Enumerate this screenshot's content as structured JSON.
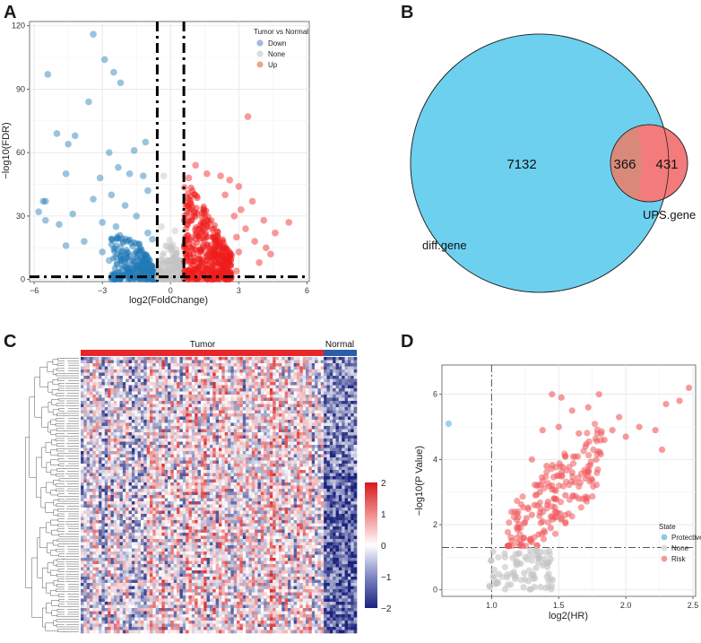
{
  "panels": {
    "a": {
      "letter": "A"
    },
    "b": {
      "letter": "B"
    },
    "c": {
      "letter": "C"
    },
    "d": {
      "letter": "D"
    }
  },
  "chart_data": [
    {
      "id": "volcano",
      "type": "scatter",
      "title": "",
      "xlabel": "log2(FoldChange)",
      "ylabel": "−log10(FDR)",
      "xlim": [
        -6.2,
        6.1
      ],
      "ylim": [
        -1,
        122
      ],
      "xticks": [
        -6,
        -3,
        0,
        3,
        6
      ],
      "xtick_labels": [
        "−6",
        "−3",
        "0",
        "3",
        "6"
      ],
      "yticks": [
        0,
        30,
        60,
        90,
        120
      ],
      "ytick_labels": [
        "0",
        "30",
        "60",
        "90",
        "120"
      ],
      "thresholds": {
        "x": [
          -0.585,
          0.585
        ],
        "y": 1.3
      },
      "legend": {
        "title": "Tumor vs Normal",
        "entries": [
          "Down",
          "None",
          "Up"
        ],
        "position": "top-right"
      },
      "colors": {
        "Down": "#1f7ab5",
        "None": "#c4c4c4",
        "Up": "#f01c1c"
      },
      "series": [
        {
          "name": "Down",
          "points": [
            [
              -3.4,
              116
            ],
            [
              -2.9,
              104
            ],
            [
              -5.4,
              97
            ],
            [
              -2.5,
              98
            ],
            [
              -2.2,
              93
            ],
            [
              -3.6,
              84
            ],
            [
              -5.0,
              69
            ],
            [
              -4.5,
              64
            ],
            [
              -4.2,
              68
            ],
            [
              -1.1,
              65
            ],
            [
              -2.7,
              60
            ],
            [
              -1.6,
              61
            ],
            [
              -4.6,
              50
            ],
            [
              -5.6,
              37
            ],
            [
              -5.5,
              37
            ],
            [
              -5.8,
              32
            ],
            [
              -5.5,
              28
            ],
            [
              -4.9,
              26
            ],
            [
              -4.3,
              31
            ],
            [
              -4.6,
              16
            ],
            [
              -3.8,
              18
            ],
            [
              -3.1,
              48
            ],
            [
              -2.3,
              53
            ],
            [
              -1.8,
              50
            ],
            [
              -1.2,
              49
            ],
            [
              -1.0,
              42
            ],
            [
              -2.6,
              40
            ],
            [
              -3.4,
              38
            ],
            [
              -2.0,
              35
            ],
            [
              -1.5,
              30
            ],
            [
              -3.0,
              27
            ],
            [
              -2.4,
              25
            ],
            [
              -1.0,
              22
            ],
            [
              -0.8,
              19
            ],
            [
              -1.5,
              17
            ],
            [
              -2.2,
              15
            ],
            [
              -3.0,
              13
            ],
            [
              -2.7,
              9
            ],
            [
              -1.8,
              11
            ],
            [
              -1.1,
              8
            ],
            [
              -0.8,
              5
            ],
            [
              -2.0,
              6
            ],
            [
              -1.4,
              4
            ],
            [
              -0.9,
              2.5
            ]
          ]
        },
        {
          "name": "None",
          "points": [
            [
              -0.3,
              49
            ],
            [
              -0.4,
              25
            ],
            [
              0.2,
              23
            ],
            [
              -0.2,
              16
            ],
            [
              0.1,
              12
            ],
            [
              -0.3,
              8
            ],
            [
              0.3,
              6
            ],
            [
              0,
              4
            ],
            [
              -0.1,
              2
            ],
            [
              0.2,
              1
            ],
            [
              -0.4,
              0.6
            ],
            [
              0.4,
              0.4
            ]
          ]
        },
        {
          "name": "Up",
          "points": [
            [
              3.4,
              77
            ],
            [
              1.1,
              54
            ],
            [
              0.8,
              48
            ],
            [
              2.2,
              49
            ],
            [
              2.6,
              47
            ],
            [
              1.6,
              50
            ],
            [
              3.0,
              44
            ],
            [
              2.4,
              40
            ],
            [
              3.6,
              37
            ],
            [
              3.1,
              33
            ],
            [
              2.8,
              30
            ],
            [
              4.1,
              28
            ],
            [
              5.2,
              27
            ],
            [
              3.3,
              24
            ],
            [
              4.6,
              22
            ],
            [
              2.9,
              20
            ],
            [
              3.7,
              18
            ],
            [
              4.2,
              15
            ],
            [
              3.0,
              13
            ],
            [
              2.3,
              11
            ],
            [
              4.4,
              12
            ],
            [
              1.6,
              9
            ],
            [
              3.9,
              8
            ],
            [
              2.1,
              7
            ],
            [
              1.2,
              6
            ],
            [
              2.9,
              4
            ],
            [
              0.8,
              3
            ],
            [
              1.7,
              2
            ]
          ]
        }
      ]
    },
    {
      "id": "venn",
      "type": "venn",
      "sets": [
        {
          "name": "diff.gene",
          "only": 7132,
          "color": "#6dd0ee"
        },
        {
          "name": "UPS.gene",
          "only": 431,
          "color": "#f47b7b"
        }
      ],
      "overlap": 366,
      "overlap_color": "#d9897a",
      "labels": {
        "set_a": "diff.gene",
        "set_b": "UPS.gene",
        "a_only": "7132",
        "overlap": "366",
        "b_only": "431"
      }
    },
    {
      "id": "heatmap",
      "type": "heatmap",
      "groups": [
        {
          "name": "Tumor",
          "color": "#e8262a"
        },
        {
          "name": "Normal",
          "color": "#2c5da8"
        }
      ],
      "colorbar": {
        "min": -2,
        "max": 2,
        "ticks": [
          2,
          1,
          0,
          -1,
          -2
        ],
        "tick_labels": [
          "2",
          "1",
          "0",
          "−1",
          "−2"
        ],
        "colors": {
          "high": "#d7191c",
          "mid": "#ffffff",
          "low": "#1a237e"
        }
      }
    },
    {
      "id": "hr_volcano",
      "type": "scatter",
      "title": "",
      "xlabel": "log2(HR)",
      "ylabel": "−log10(P Value)",
      "xlim": [
        0.63,
        2.52
      ],
      "ylim": [
        -0.2,
        6.9
      ],
      "xticks": [
        1.0,
        1.5,
        2.0,
        2.5
      ],
      "xtick_labels": [
        "1.0",
        "1.5",
        "2.0",
        "2.5"
      ],
      "yticks": [
        0,
        2,
        4,
        6
      ],
      "ytick_labels": [
        "0",
        "2",
        "4",
        "6"
      ],
      "thresholds": {
        "x": 1.0,
        "y": 1.3
      },
      "legend": {
        "title": "State",
        "entries": [
          "Protective",
          "None",
          "Risk"
        ],
        "position": "bottom-right"
      },
      "colors": {
        "Protective": "#5ab4e6",
        "None": "#c4c4c4",
        "Risk": "#f0595c"
      },
      "series": [
        {
          "name": "Protective",
          "points": [
            [
              0.68,
              5.1
            ]
          ]
        },
        {
          "name": "None",
          "points": [
            [
              1.0,
              0.9
            ],
            [
              1.03,
              0.2
            ],
            [
              1.05,
              1.0
            ],
            [
              1.08,
              0.4
            ],
            [
              1.1,
              0.7
            ],
            [
              1.12,
              0.15
            ],
            [
              1.15,
              0.5
            ],
            [
              1.18,
              1.1
            ],
            [
              1.2,
              0.8
            ],
            [
              1.22,
              0.3
            ],
            [
              1.25,
              1.0
            ],
            [
              1.28,
              0.6
            ],
            [
              1.3,
              0.9
            ],
            [
              1.33,
              1.2
            ],
            [
              1.35,
              1.05
            ],
            [
              1.38,
              0.75
            ],
            [
              1.4,
              1.15
            ],
            [
              1.43,
              1.2
            ]
          ]
        },
        {
          "name": "Risk",
          "points": [
            [
              2.47,
              6.2
            ],
            [
              2.3,
              5.7
            ],
            [
              2.4,
              5.8
            ],
            [
              1.45,
              6.0
            ],
            [
              1.52,
              5.9
            ],
            [
              1.6,
              5.5
            ],
            [
              1.8,
              6.0
            ],
            [
              1.5,
              5.0
            ],
            [
              1.72,
              5.6
            ],
            [
              1.95,
              5.3
            ],
            [
              2.1,
              5.0
            ],
            [
              2.22,
              4.9
            ],
            [
              2.27,
              4.3
            ],
            [
              1.9,
              4.9
            ],
            [
              2.0,
              4.7
            ],
            [
              1.84,
              4.6
            ],
            [
              1.7,
              4.4
            ],
            [
              1.65,
              4.8
            ],
            [
              1.38,
              4.9
            ],
            [
              1.3,
              4.0
            ],
            [
              1.41,
              3.8
            ],
            [
              1.55,
              4.1
            ],
            [
              1.78,
              4.0
            ],
            [
              1.6,
              3.6
            ],
            [
              1.5,
              3.5
            ],
            [
              1.45,
              3.2
            ],
            [
              1.36,
              3.0
            ],
            [
              1.32,
              2.6
            ],
            [
              1.42,
              2.7
            ],
            [
              1.55,
              2.9
            ],
            [
              1.62,
              3.3
            ],
            [
              1.7,
              3.6
            ],
            [
              1.26,
              2.2
            ],
            [
              1.3,
              2.3
            ],
            [
              1.38,
              2.1
            ],
            [
              1.48,
              2.4
            ],
            [
              1.2,
              1.9
            ],
            [
              1.24,
              1.6
            ],
            [
              1.35,
              1.7
            ],
            [
              1.44,
              1.9
            ],
            [
              1.52,
              2.2
            ],
            [
              1.15,
              1.5
            ],
            [
              1.22,
              1.4
            ],
            [
              1.29,
              1.5
            ]
          ]
        }
      ]
    }
  ]
}
